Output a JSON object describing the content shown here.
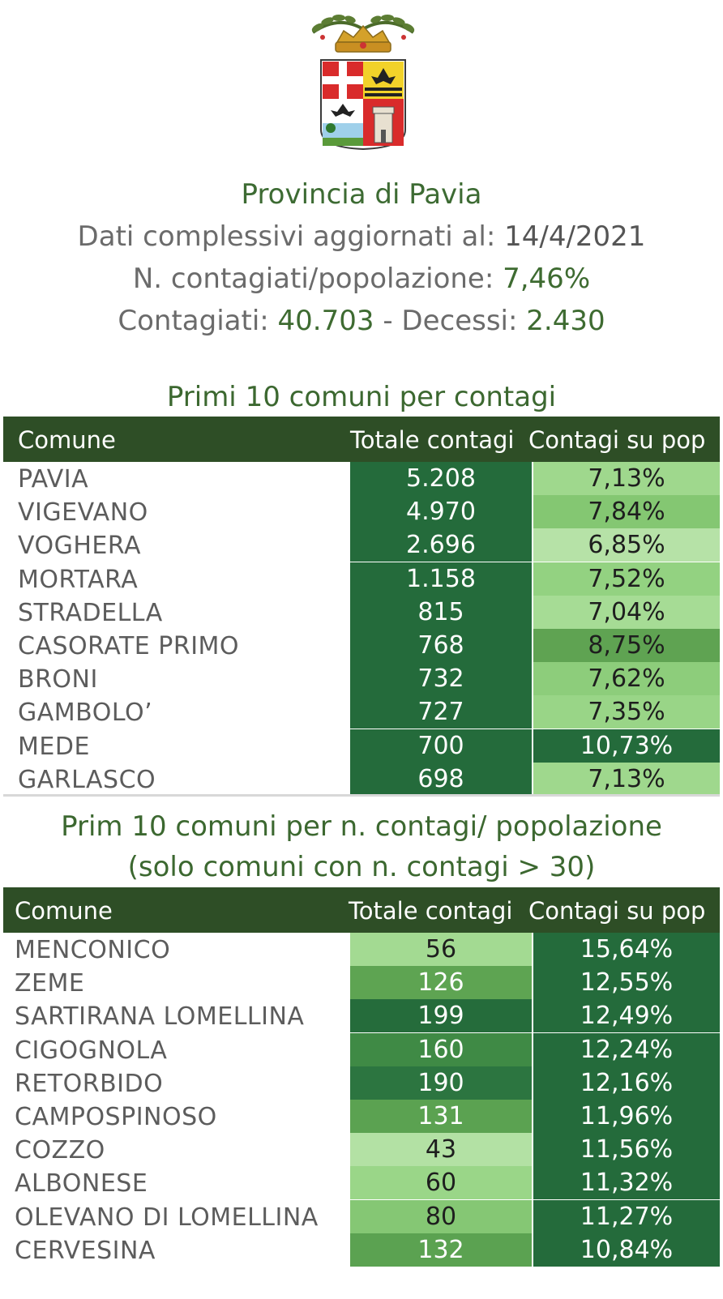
{
  "header": {
    "title": "Provincia di Pavia",
    "updated_label": "Dati complessivi aggiornati al:",
    "updated_date": "14/4/2021",
    "ratio_label": "N. contagiati/popolazione:",
    "ratio_value": "7,46%",
    "infected_label": "Contagiati:",
    "infected_value": "40.703",
    "separator": "-",
    "deaths_label": "Decessi:",
    "deaths_value": "2.430"
  },
  "table1": {
    "title": "Primi 10 comuni per contagi",
    "columns": [
      "Comune",
      "Totale contagi",
      "Contagi su pop"
    ],
    "rows": [
      {
        "comune": "PAVIA",
        "totale": "5.208",
        "pct": "7,13%"
      },
      {
        "comune": "VIGEVANO",
        "totale": "4.970",
        "pct": "7,84%"
      },
      {
        "comune": "VOGHERA",
        "totale": "2.696",
        "pct": "6,85%"
      },
      {
        "comune": "MORTARA",
        "totale": "1.158",
        "pct": "7,52%"
      },
      {
        "comune": "STRADELLA",
        "totale": "815",
        "pct": "7,04%"
      },
      {
        "comune": "CASORATE PRIMO",
        "totale": "768",
        "pct": "8,75%"
      },
      {
        "comune": "BRONI",
        "totale": "732",
        "pct": "7,62%"
      },
      {
        "comune": "GAMBOLO’",
        "totale": "727",
        "pct": "7,35%"
      },
      {
        "comune": "MEDE",
        "totale": "700",
        "pct": "10,73%"
      },
      {
        "comune": "GARLASCO",
        "totale": "698",
        "pct": "7,13%"
      }
    ],
    "tot_colors": [
      "#246b3b",
      "#246b3b",
      "#246b3b",
      "#246b3b",
      "#246b3b",
      "#246b3b",
      "#246b3b",
      "#246b3b",
      "#246b3b",
      "#246b3b"
    ],
    "pct_colors": [
      "#9fd88d",
      "#84c772",
      "#b6e2a7",
      "#93d281",
      "#a6dc95",
      "#5fa352",
      "#8dcd7b",
      "#99d587",
      "#246b3b",
      "#9fd88d"
    ],
    "tot_text": [
      "#ffffff",
      "#ffffff",
      "#ffffff",
      "#ffffff",
      "#ffffff",
      "#ffffff",
      "#ffffff",
      "#ffffff",
      "#ffffff",
      "#ffffff"
    ],
    "pct_text": [
      "#1e1e1e",
      "#1e1e1e",
      "#1e1e1e",
      "#1e1e1e",
      "#1e1e1e",
      "#1e1e1e",
      "#1e1e1e",
      "#1e1e1e",
      "#ffffff",
      "#1e1e1e"
    ]
  },
  "table2": {
    "title_line1": "Prim 10 comuni per n. contagi/ popolazione",
    "title_line2": "(solo comuni con n. contagi > 30)",
    "columns": [
      "Comune",
      "Totale contagi",
      "Contagi su pop"
    ],
    "rows": [
      {
        "comune": "MENCONICO",
        "totale": "56",
        "pct": "15,64%"
      },
      {
        "comune": "ZEME",
        "totale": "126",
        "pct": "12,55%"
      },
      {
        "comune": "SARTIRANA LOMELLINA",
        "totale": "199",
        "pct": "12,49%"
      },
      {
        "comune": "CIGOGNOLA",
        "totale": "160",
        "pct": "12,24%"
      },
      {
        "comune": "RETORBIDO",
        "totale": "190",
        "pct": "12,16%"
      },
      {
        "comune": "CAMPOSPINOSO",
        "totale": "131",
        "pct": "11,96%"
      },
      {
        "comune": "COZZO",
        "totale": "43",
        "pct": "11,56%"
      },
      {
        "comune": "ALBONESE",
        "totale": "60",
        "pct": "11,32%"
      },
      {
        "comune": "OLEVANO DI LOMELLINA",
        "totale": "80",
        "pct": "11,27%"
      },
      {
        "comune": "CERVESINA",
        "totale": "132",
        "pct": "10,84%"
      }
    ],
    "tot_colors": [
      "#a3da92",
      "#5ea452",
      "#256c3b",
      "#3f8a45",
      "#2c7540",
      "#5ba251",
      "#b3e1a4",
      "#9ad688",
      "#85c774",
      "#5ba251"
    ],
    "pct_colors": [
      "#246b3b",
      "#246b3b",
      "#246b3b",
      "#246b3b",
      "#246b3b",
      "#246b3b",
      "#246b3b",
      "#246b3b",
      "#246b3b",
      "#246b3b"
    ],
    "tot_text": [
      "#1e1e1e",
      "#ffffff",
      "#ffffff",
      "#ffffff",
      "#ffffff",
      "#ffffff",
      "#1e1e1e",
      "#1e1e1e",
      "#1e1e1e",
      "#ffffff"
    ],
    "pct_text": [
      "#ffffff",
      "#ffffff",
      "#ffffff",
      "#ffffff",
      "#ffffff",
      "#ffffff",
      "#ffffff",
      "#ffffff",
      "#ffffff",
      "#ffffff"
    ]
  }
}
